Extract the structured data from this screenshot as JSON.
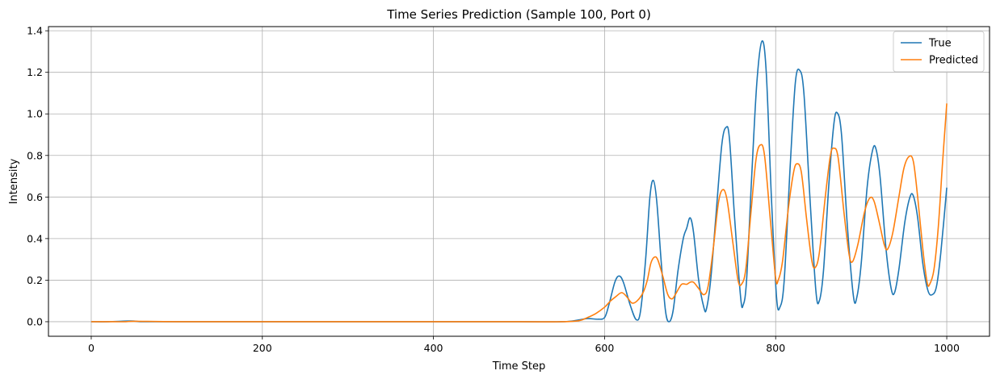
{
  "chart_data": {
    "type": "line",
    "title": "Time Series Prediction (Sample 100, Port 0)",
    "xlabel": "Time Step",
    "ylabel": "Intensity",
    "xlim": [
      -50,
      1050
    ],
    "ylim": [
      -0.07,
      1.42
    ],
    "xticks": [
      0,
      200,
      400,
      600,
      800,
      1000
    ],
    "yticks": [
      0.0,
      0.2,
      0.4,
      0.6,
      0.8,
      1.0,
      1.2,
      1.4
    ],
    "grid": true,
    "legend_position": "top-right",
    "series": [
      {
        "name": "True",
        "color": "#1f77b4",
        "points": [
          [
            0,
            0.0
          ],
          [
            20,
            0.0
          ],
          [
            40,
            0.003
          ],
          [
            50,
            0.003
          ],
          [
            60,
            0.0
          ],
          [
            100,
            0.0
          ],
          [
            200,
            0.0
          ],
          [
            300,
            0.0
          ],
          [
            400,
            0.0
          ],
          [
            500,
            0.0
          ],
          [
            550,
            0.0
          ],
          [
            565,
            0.005
          ],
          [
            580,
            0.015
          ],
          [
            592,
            0.012
          ],
          [
            600,
            0.02
          ],
          [
            605,
            0.08
          ],
          [
            612,
            0.19
          ],
          [
            617,
            0.22
          ],
          [
            622,
            0.19
          ],
          [
            630,
            0.08
          ],
          [
            637,
            0.01
          ],
          [
            642,
            0.05
          ],
          [
            648,
            0.3
          ],
          [
            653,
            0.6
          ],
          [
            657,
            0.68
          ],
          [
            661,
            0.58
          ],
          [
            666,
            0.3
          ],
          [
            671,
            0.06
          ],
          [
            675,
            0.0
          ],
          [
            680,
            0.05
          ],
          [
            686,
            0.25
          ],
          [
            692,
            0.4
          ],
          [
            696,
            0.45
          ],
          [
            700,
            0.5
          ],
          [
            704,
            0.43
          ],
          [
            710,
            0.2
          ],
          [
            716,
            0.07
          ],
          [
            719,
            0.06
          ],
          [
            724,
            0.2
          ],
          [
            730,
            0.5
          ],
          [
            737,
            0.85
          ],
          [
            742,
            0.935
          ],
          [
            746,
            0.88
          ],
          [
            752,
            0.5
          ],
          [
            759,
            0.12
          ],
          [
            762,
            0.08
          ],
          [
            766,
            0.2
          ],
          [
            772,
            0.7
          ],
          [
            778,
            1.15
          ],
          [
            784,
            1.35
          ],
          [
            789,
            1.2
          ],
          [
            795,
            0.6
          ],
          [
            801,
            0.12
          ],
          [
            805,
            0.07
          ],
          [
            810,
            0.2
          ],
          [
            817,
            0.75
          ],
          [
            823,
            1.15
          ],
          [
            828,
            1.21
          ],
          [
            833,
            1.1
          ],
          [
            840,
            0.6
          ],
          [
            847,
            0.15
          ],
          [
            851,
            0.1
          ],
          [
            856,
            0.25
          ],
          [
            862,
            0.65
          ],
          [
            868,
            0.95
          ],
          [
            872,
            1.005
          ],
          [
            877,
            0.9
          ],
          [
            884,
            0.45
          ],
          [
            891,
            0.12
          ],
          [
            895,
            0.12
          ],
          [
            900,
            0.28
          ],
          [
            907,
            0.65
          ],
          [
            913,
            0.82
          ],
          [
            917,
            0.835
          ],
          [
            922,
            0.7
          ],
          [
            929,
            0.35
          ],
          [
            935,
            0.16
          ],
          [
            939,
            0.14
          ],
          [
            944,
            0.25
          ],
          [
            951,
            0.48
          ],
          [
            957,
            0.6
          ],
          [
            961,
            0.605
          ],
          [
            966,
            0.5
          ],
          [
            972,
            0.28
          ],
          [
            978,
            0.15
          ],
          [
            983,
            0.13
          ],
          [
            988,
            0.17
          ],
          [
            993,
            0.33
          ],
          [
            1000,
            0.645
          ]
        ]
      },
      {
        "name": "Predicted",
        "color": "#ff7f0e",
        "points": [
          [
            0,
            0.0
          ],
          [
            20,
            0.0
          ],
          [
            40,
            0.0
          ],
          [
            50,
            0.002
          ],
          [
            100,
            0.0
          ],
          [
            200,
            0.0
          ],
          [
            300,
            0.0
          ],
          [
            400,
            0.0
          ],
          [
            500,
            0.0
          ],
          [
            550,
            0.0
          ],
          [
            570,
            0.005
          ],
          [
            580,
            0.02
          ],
          [
            590,
            0.04
          ],
          [
            600,
            0.07
          ],
          [
            607,
            0.1
          ],
          [
            613,
            0.12
          ],
          [
            620,
            0.14
          ],
          [
            626,
            0.12
          ],
          [
            632,
            0.09
          ],
          [
            638,
            0.1
          ],
          [
            645,
            0.14
          ],
          [
            650,
            0.2
          ],
          [
            654,
            0.28
          ],
          [
            658,
            0.31
          ],
          [
            662,
            0.3
          ],
          [
            668,
            0.22
          ],
          [
            674,
            0.13
          ],
          [
            679,
            0.11
          ],
          [
            684,
            0.14
          ],
          [
            690,
            0.18
          ],
          [
            696,
            0.18
          ],
          [
            700,
            0.19
          ],
          [
            704,
            0.19
          ],
          [
            710,
            0.16
          ],
          [
            716,
            0.13
          ],
          [
            721,
            0.17
          ],
          [
            727,
            0.35
          ],
          [
            733,
            0.57
          ],
          [
            738,
            0.635
          ],
          [
            743,
            0.59
          ],
          [
            750,
            0.38
          ],
          [
            756,
            0.2
          ],
          [
            760,
            0.18
          ],
          [
            765,
            0.25
          ],
          [
            771,
            0.52
          ],
          [
            777,
            0.78
          ],
          [
            782,
            0.85
          ],
          [
            787,
            0.8
          ],
          [
            794,
            0.48
          ],
          [
            800,
            0.21
          ],
          [
            803,
            0.2
          ],
          [
            808,
            0.29
          ],
          [
            815,
            0.55
          ],
          [
            821,
            0.72
          ],
          [
            825,
            0.76
          ],
          [
            830,
            0.72
          ],
          [
            836,
            0.5
          ],
          [
            842,
            0.3
          ],
          [
            846,
            0.26
          ],
          [
            851,
            0.33
          ],
          [
            858,
            0.6
          ],
          [
            864,
            0.8
          ],
          [
            868,
            0.835
          ],
          [
            873,
            0.79
          ],
          [
            880,
            0.52
          ],
          [
            886,
            0.32
          ],
          [
            890,
            0.29
          ],
          [
            896,
            0.37
          ],
          [
            904,
            0.53
          ],
          [
            910,
            0.595
          ],
          [
            915,
            0.58
          ],
          [
            921,
            0.48
          ],
          [
            927,
            0.37
          ],
          [
            931,
            0.35
          ],
          [
            937,
            0.43
          ],
          [
            944,
            0.6
          ],
          [
            950,
            0.74
          ],
          [
            956,
            0.795
          ],
          [
            961,
            0.77
          ],
          [
            966,
            0.6
          ],
          [
            972,
            0.35
          ],
          [
            977,
            0.19
          ],
          [
            980,
            0.18
          ],
          [
            985,
            0.25
          ],
          [
            990,
            0.45
          ],
          [
            995,
            0.76
          ],
          [
            1000,
            1.05
          ]
        ]
      }
    ]
  }
}
